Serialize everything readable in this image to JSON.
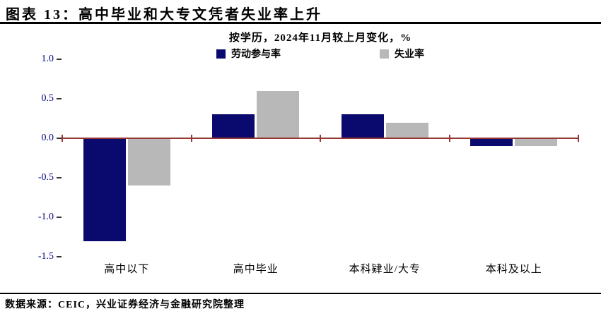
{
  "header": {
    "title": "图表 13：高中毕业和大专文凭者失业率上升"
  },
  "chart_data": {
    "type": "bar",
    "title": "按学历，2024年11月较上月变化，%",
    "categories": [
      "高中以下",
      "高中毕业",
      "本科肄业/大专",
      "本科及以上"
    ],
    "series": [
      {
        "id": "labor-participation-rate",
        "name": "劳动参与率",
        "color": "#0a0a6e",
        "values": [
          -1.3,
          0.3,
          0.3,
          -0.1
        ]
      },
      {
        "id": "unemployment-rate",
        "name": "失业率",
        "color": "#b8b8b8",
        "values": [
          -0.6,
          0.6,
          0.2,
          -0.1
        ]
      }
    ],
    "ylim": [
      -1.5,
      1.0
    ],
    "yticks": [
      1.0,
      0.5,
      0.0,
      -0.5,
      -1.0,
      -1.5
    ],
    "unit": "%",
    "grid": false,
    "legend_position": "top-center",
    "axis_color": "#963634",
    "tick_label_color": "#000080"
  },
  "footer": {
    "source": "数据来源：CEIC，兴业证券经济与金融研究院整理"
  }
}
